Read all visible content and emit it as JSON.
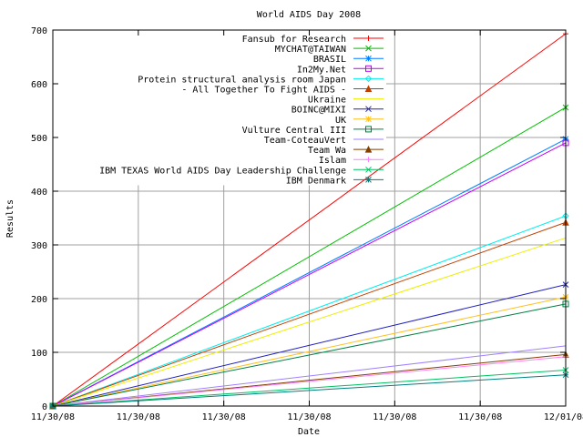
{
  "chart_data": {
    "type": "line",
    "title": "World AIDS Day 2008",
    "xlabel": "Date",
    "ylabel": "Results",
    "ylim": [
      0,
      700
    ],
    "yticks": [
      0,
      100,
      200,
      300,
      400,
      500,
      600,
      700
    ],
    "xlim": [
      0,
      1
    ],
    "xtick_labels": [
      "11/30/08",
      "11/30/08",
      "11/30/08",
      "11/30/08",
      "11/30/08",
      "11/30/08",
      "12/01/08"
    ],
    "grid": true,
    "legend_position": "top-right",
    "series": [
      {
        "name": "Fansub for Research",
        "color": "#ff0000",
        "marker": "plus",
        "points": [
          [
            0,
            0
          ],
          [
            1,
            693
          ]
        ]
      },
      {
        "name": "MYCHAT@TAIWAN",
        "color": "#00c000",
        "marker": "x",
        "points": [
          [
            0,
            0
          ],
          [
            1,
            556
          ]
        ]
      },
      {
        "name": "BRASIL",
        "color": "#0080ff",
        "marker": "star",
        "points": [
          [
            0,
            0
          ],
          [
            1,
            497
          ]
        ]
      },
      {
        "name": "In2My.Net",
        "color": "#c000ff",
        "marker": "square",
        "points": [
          [
            0,
            0
          ],
          [
            1,
            490
          ]
        ]
      },
      {
        "name": "Protein structural analysis room Japan",
        "color": "#00eeee",
        "marker": "diamond",
        "points": [
          [
            0,
            0
          ],
          [
            1,
            354
          ]
        ]
      },
      {
        "name": "- All Together To Fight AIDS -",
        "color": "#c04000",
        "marker": "triangle",
        "points": [
          [
            0,
            0
          ],
          [
            1,
            342
          ]
        ]
      },
      {
        "name": "Ukraine",
        "color": "#eeee00",
        "marker": "none",
        "points": [
          [
            0,
            0
          ],
          [
            1,
            313
          ]
        ]
      },
      {
        "name": "BOINC@MIXI",
        "color": "#2020c0",
        "marker": "x",
        "points": [
          [
            0,
            0
          ],
          [
            1,
            226
          ]
        ]
      },
      {
        "name": "UK",
        "color": "#ffc020",
        "marker": "star",
        "points": [
          [
            0,
            0
          ],
          [
            1,
            203
          ]
        ]
      },
      {
        "name": "Vulture Central III",
        "color": "#008040",
        "marker": "square",
        "points": [
          [
            0,
            0
          ],
          [
            1,
            190
          ]
        ]
      },
      {
        "name": "Team-CoteauVert",
        "color": "#a080ff",
        "marker": "none",
        "points": [
          [
            0,
            0
          ],
          [
            1,
            112
          ]
        ]
      },
      {
        "name": "Team Wa",
        "color": "#804000",
        "marker": "triangle",
        "points": [
          [
            0,
            0
          ],
          [
            1,
            96
          ]
        ]
      },
      {
        "name": "Islam",
        "color": "#ff80ff",
        "marker": "plus",
        "points": [
          [
            0,
            0
          ],
          [
            1,
            92
          ]
        ]
      },
      {
        "name": "IBM TEXAS World AIDS Day Leadership Challenge",
        "color": "#00c060",
        "marker": "x",
        "points": [
          [
            0,
            0
          ],
          [
            1,
            67
          ]
        ]
      },
      {
        "name": "IBM Denmark",
        "color": "#008080",
        "marker": "star",
        "points": [
          [
            0,
            0
          ],
          [
            1,
            58
          ]
        ]
      }
    ]
  }
}
